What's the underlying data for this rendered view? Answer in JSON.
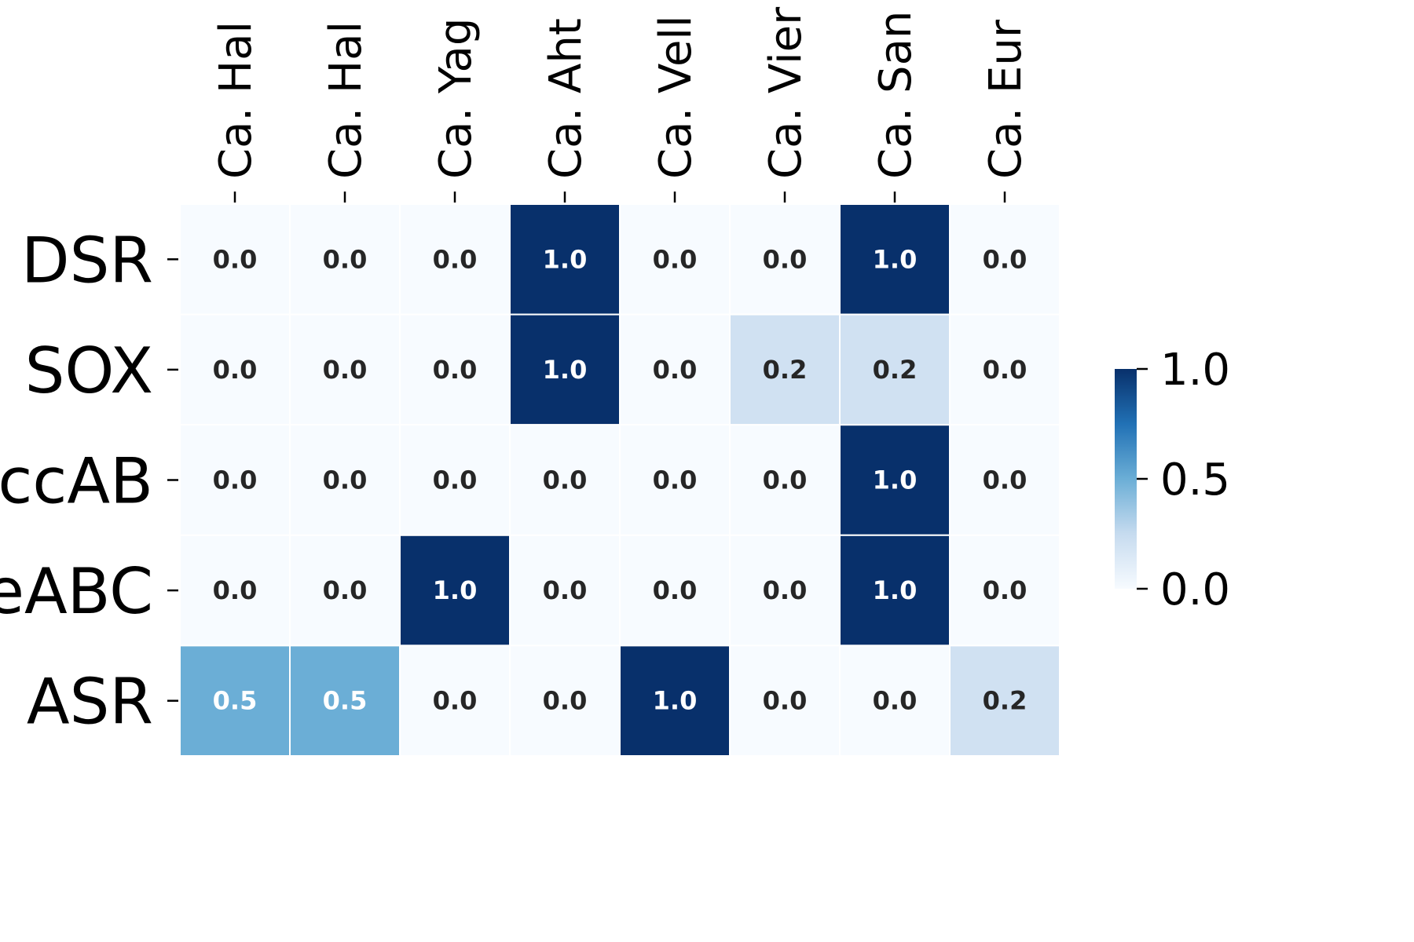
{
  "chart_data": {
    "type": "heatmap",
    "title": "",
    "xlabel": "",
    "ylabel": "",
    "x_labels": [
      "Ca. Hal",
      "Ca. Hal",
      "Ca. Yag",
      "Ca. Aht",
      "Ca. Vell",
      "Ca. Vier",
      "Ca. San",
      "Ca. Eur"
    ],
    "y_labels": [
      "DSR",
      "SOX",
      "ccAB",
      "eABC",
      "ASR"
    ],
    "values": [
      [
        0.0,
        0.0,
        0.0,
        1.0,
        0.0,
        0.0,
        1.0,
        0.0
      ],
      [
        0.0,
        0.0,
        0.0,
        1.0,
        0.0,
        0.2,
        0.2,
        0.0
      ],
      [
        0.0,
        0.0,
        0.0,
        0.0,
        0.0,
        0.0,
        1.0,
        0.0
      ],
      [
        0.0,
        0.0,
        1.0,
        0.0,
        0.0,
        0.0,
        1.0,
        0.0
      ],
      [
        0.5,
        0.5,
        0.0,
        0.0,
        1.0,
        0.0,
        0.0,
        0.2
      ]
    ],
    "value_range": [
      0.0,
      1.0
    ],
    "colormap": "Blues",
    "annotations": true,
    "colorbar": {
      "ticks": [
        1.0,
        0.5,
        0.0
      ],
      "tick_labels": [
        "1.0",
        "0.5",
        "0.0"
      ]
    },
    "grid": false
  }
}
